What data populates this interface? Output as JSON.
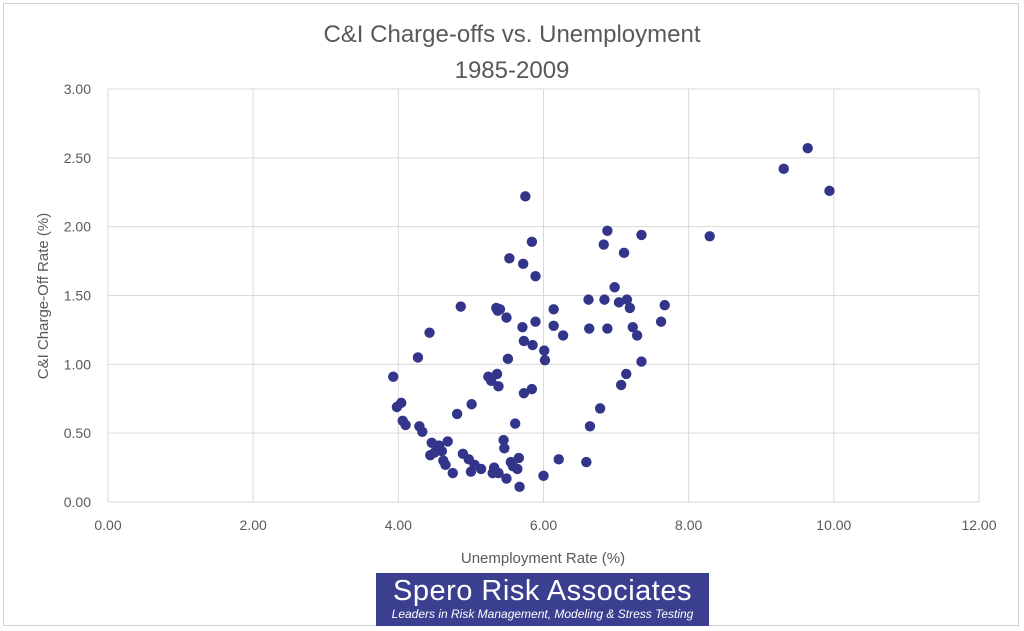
{
  "chart_data": {
    "type": "scatter",
    "title": "C&I Charge-offs vs. Unemployment",
    "subtitle": "1985-2009",
    "xlabel": "Unemployment  Rate (%)",
    "ylabel": "C&I Charge-Off Rate (%)",
    "xlim": [
      0,
      12
    ],
    "ylim": [
      0,
      3
    ],
    "x_ticks": [
      "0.00",
      "2.00",
      "4.00",
      "6.00",
      "8.00",
      "10.00",
      "12.00"
    ],
    "y_ticks": [
      "0.00",
      "0.50",
      "1.00",
      "1.50",
      "2.00",
      "2.50",
      "3.00"
    ],
    "grid": true,
    "marker_color": "#33358a",
    "points": [
      [
        3.93,
        0.91
      ],
      [
        3.98,
        0.69
      ],
      [
        4.04,
        0.72
      ],
      [
        4.06,
        0.59
      ],
      [
        4.1,
        0.56
      ],
      [
        4.27,
        1.05
      ],
      [
        4.29,
        0.55
      ],
      [
        4.33,
        0.51
      ],
      [
        4.43,
        1.23
      ],
      [
        4.44,
        0.34
      ],
      [
        4.46,
        0.43
      ],
      [
        4.5,
        0.36
      ],
      [
        4.56,
        0.41
      ],
      [
        4.6,
        0.37
      ],
      [
        4.62,
        0.3
      ],
      [
        4.65,
        0.27
      ],
      [
        4.68,
        0.44
      ],
      [
        4.75,
        0.21
      ],
      [
        4.81,
        0.64
      ],
      [
        4.86,
        1.42
      ],
      [
        4.89,
        0.35
      ],
      [
        4.97,
        0.31
      ],
      [
        5.0,
        0.22
      ],
      [
        5.01,
        0.71
      ],
      [
        5.05,
        0.27
      ],
      [
        5.14,
        0.24
      ],
      [
        5.24,
        0.91
      ],
      [
        5.28,
        0.88
      ],
      [
        5.3,
        0.21
      ],
      [
        5.32,
        0.25
      ],
      [
        5.35,
        1.41
      ],
      [
        5.36,
        0.93
      ],
      [
        5.37,
        1.39
      ],
      [
        5.38,
        0.84
      ],
      [
        5.38,
        0.21
      ],
      [
        5.4,
        1.4
      ],
      [
        5.45,
        0.45
      ],
      [
        5.46,
        0.39
      ],
      [
        5.49,
        1.34
      ],
      [
        5.49,
        0.17
      ],
      [
        5.51,
        1.04
      ],
      [
        5.53,
        1.77
      ],
      [
        5.55,
        0.29
      ],
      [
        5.58,
        0.26
      ],
      [
        5.61,
        0.57
      ],
      [
        5.64,
        0.24
      ],
      [
        5.66,
        0.32
      ],
      [
        5.67,
        0.11
      ],
      [
        5.71,
        1.27
      ],
      [
        5.72,
        1.73
      ],
      [
        5.73,
        1.17
      ],
      [
        5.73,
        0.79
      ],
      [
        5.75,
        2.22
      ],
      [
        5.84,
        1.89
      ],
      [
        5.84,
        0.82
      ],
      [
        5.85,
        1.14
      ],
      [
        5.89,
        1.64
      ],
      [
        5.89,
        1.31
      ],
      [
        6.0,
        0.19
      ],
      [
        6.01,
        1.1
      ],
      [
        6.02,
        1.03
      ],
      [
        6.14,
        1.4
      ],
      [
        6.14,
        1.28
      ],
      [
        6.21,
        0.31
      ],
      [
        6.27,
        1.21
      ],
      [
        6.59,
        0.29
      ],
      [
        6.62,
        1.47
      ],
      [
        6.63,
        1.26
      ],
      [
        6.64,
        0.55
      ],
      [
        6.78,
        0.68
      ],
      [
        6.83,
        1.87
      ],
      [
        6.84,
        1.47
      ],
      [
        6.88,
        1.97
      ],
      [
        6.88,
        1.26
      ],
      [
        6.98,
        1.56
      ],
      [
        7.04,
        1.45
      ],
      [
        7.07,
        0.85
      ],
      [
        7.11,
        1.81
      ],
      [
        7.14,
        0.93
      ],
      [
        7.15,
        1.47
      ],
      [
        7.19,
        1.41
      ],
      [
        7.23,
        1.27
      ],
      [
        7.29,
        1.21
      ],
      [
        7.35,
        1.94
      ],
      [
        7.35,
        1.02
      ],
      [
        7.62,
        1.31
      ],
      [
        7.67,
        1.43
      ],
      [
        8.29,
        1.93
      ],
      [
        9.31,
        2.42
      ],
      [
        9.64,
        2.57
      ],
      [
        9.94,
        2.26
      ]
    ]
  },
  "banner": {
    "name": "Spero Risk Associates",
    "tagline": "Leaders in Risk Management, Modeling & Stress Testing",
    "background": "#3b3f8f"
  }
}
